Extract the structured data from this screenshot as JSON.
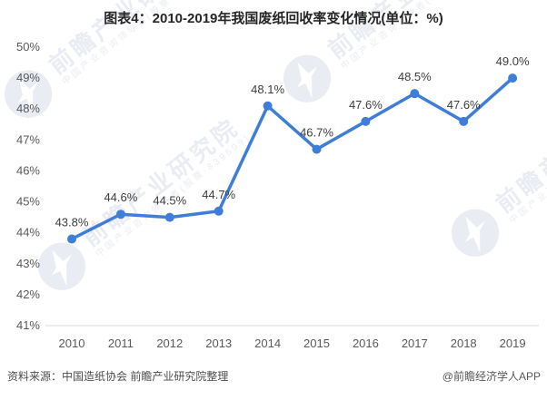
{
  "title": "图表4：2010-2019年我国废纸回收率变化情况(单位：%)",
  "footer": {
    "source": "资料来源：中国造纸协会 前瞻产业研究院整理",
    "credit": "@前瞻经济学人APP"
  },
  "watermark": {
    "main": "前瞻产业研究院",
    "sub": "中国产业咨询领导者(股票·839599)",
    "color": "#e9ecf3"
  },
  "chart_data": {
    "type": "line",
    "title": "图表4：2010-2019年我国废纸回收率变化情况(单位：%)",
    "categories": [
      "2010",
      "2011",
      "2012",
      "2013",
      "2014",
      "2015",
      "2016",
      "2017",
      "2018",
      "2019"
    ],
    "values": [
      43.8,
      44.6,
      44.5,
      44.7,
      48.1,
      46.7,
      47.6,
      48.5,
      47.6,
      49.0
    ],
    "data_labels": [
      "43.8%",
      "44.6%",
      "44.5%",
      "44.7%",
      "48.1%",
      "46.7%",
      "47.6%",
      "48.5%",
      "47.6%",
      "49.0%"
    ],
    "xlabel": "",
    "ylabel": "",
    "ylim": [
      41,
      50
    ],
    "ytick_labels": [
      "41%",
      "42%",
      "43%",
      "44%",
      "45%",
      "46%",
      "47%",
      "48%",
      "49%",
      "50%"
    ],
    "grid": false,
    "legend": null,
    "line_color": "#3f7ed8",
    "marker": "circle"
  }
}
